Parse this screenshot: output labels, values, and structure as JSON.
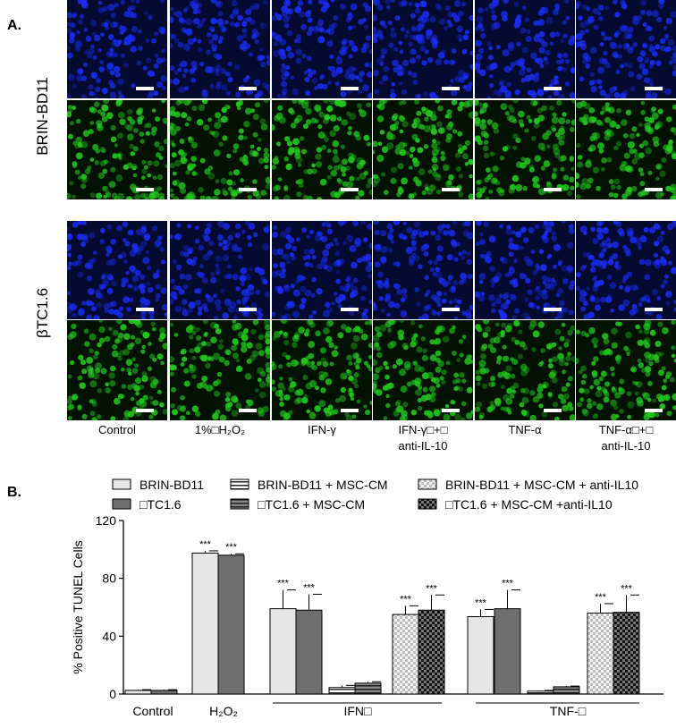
{
  "panel_a_label": "A.",
  "panel_b_label": "B.",
  "row_groups": [
    "BRIN-BD11",
    "βTC1.6"
  ],
  "conditions": [
    "Control",
    "1%□H₂O₂",
    "IFN-γ",
    "IFN-γ□+□\nanti-IL-10",
    "TNF-α",
    "TNF-α□+□\nanti-IL-10"
  ],
  "colors": {
    "dapi": "#1a2cf0",
    "tunel": "#22c81e",
    "bar_light": "#e6e6e6",
    "bar_dark": "#6e6e6e"
  },
  "chart_data": {
    "type": "bar",
    "ylabel": "% Positive TUNEL Cells",
    "ylim": [
      0,
      120
    ],
    "yticks": [
      "0",
      "40",
      "80",
      "120"
    ],
    "category_labels": [
      "Control",
      "H₂O₂",
      "IFN□",
      "TNF-□"
    ],
    "legend": [
      {
        "label": "BRIN-BD11",
        "style": "light"
      },
      {
        "label": "BRIN-BD11 + MSC-CM",
        "style": "light-striped"
      },
      {
        "label": "BRIN-BD11 + MSC-CM + anti-IL10",
        "style": "light-checked"
      },
      {
        "label": "□TC1.6",
        "style": "dark"
      },
      {
        "label": "□TC1.6 + MSC-CM",
        "style": "dark-striped"
      },
      {
        "label": "□TC1.6 + MSC-CM +anti-IL10",
        "style": "dark-checked"
      }
    ],
    "significance_label": "***",
    "bars": [
      {
        "group": "Control",
        "style": "light",
        "value": 2.5,
        "err": 0.5,
        "sig": false
      },
      {
        "group": "Control",
        "style": "dark",
        "value": 2.5,
        "err": 0.5,
        "sig": false
      },
      {
        "group": "H₂O₂",
        "style": "light",
        "value": 97.5,
        "err": 1.5,
        "sig": true
      },
      {
        "group": "H₂O₂",
        "style": "dark",
        "value": 96,
        "err": 1,
        "sig": true
      },
      {
        "group": "IFN□",
        "style": "light",
        "value": 59,
        "err": 13,
        "sig": true
      },
      {
        "group": "IFN□",
        "style": "dark",
        "value": 58,
        "err": 11,
        "sig": true
      },
      {
        "group": "IFN□",
        "style": "light-striped",
        "value": 4.5,
        "err": 1.5,
        "sig": false
      },
      {
        "group": "IFN□",
        "style": "dark-striped",
        "value": 7.5,
        "err": 1,
        "sig": false
      },
      {
        "group": "IFN□",
        "style": "light-checked",
        "value": 55,
        "err": 6,
        "sig": true
      },
      {
        "group": "IFN□",
        "style": "dark-checked",
        "value": 58,
        "err": 10.5,
        "sig": true
      },
      {
        "group": "TNF-□",
        "style": "light",
        "value": 53.5,
        "err": 5,
        "sig": true
      },
      {
        "group": "TNF-□",
        "style": "dark",
        "value": 59,
        "err": 13,
        "sig": true
      },
      {
        "group": "TNF-□",
        "style": "light-striped",
        "value": 2,
        "err": 0.5,
        "sig": false
      },
      {
        "group": "TNF-□",
        "style": "dark-striped",
        "value": 5,
        "err": 0.5,
        "sig": false
      },
      {
        "group": "TNF-□",
        "style": "light-checked",
        "value": 56,
        "err": 6.5,
        "sig": true
      },
      {
        "group": "TNF-□",
        "style": "dark-checked",
        "value": 56.5,
        "err": 12,
        "sig": true
      }
    ]
  }
}
